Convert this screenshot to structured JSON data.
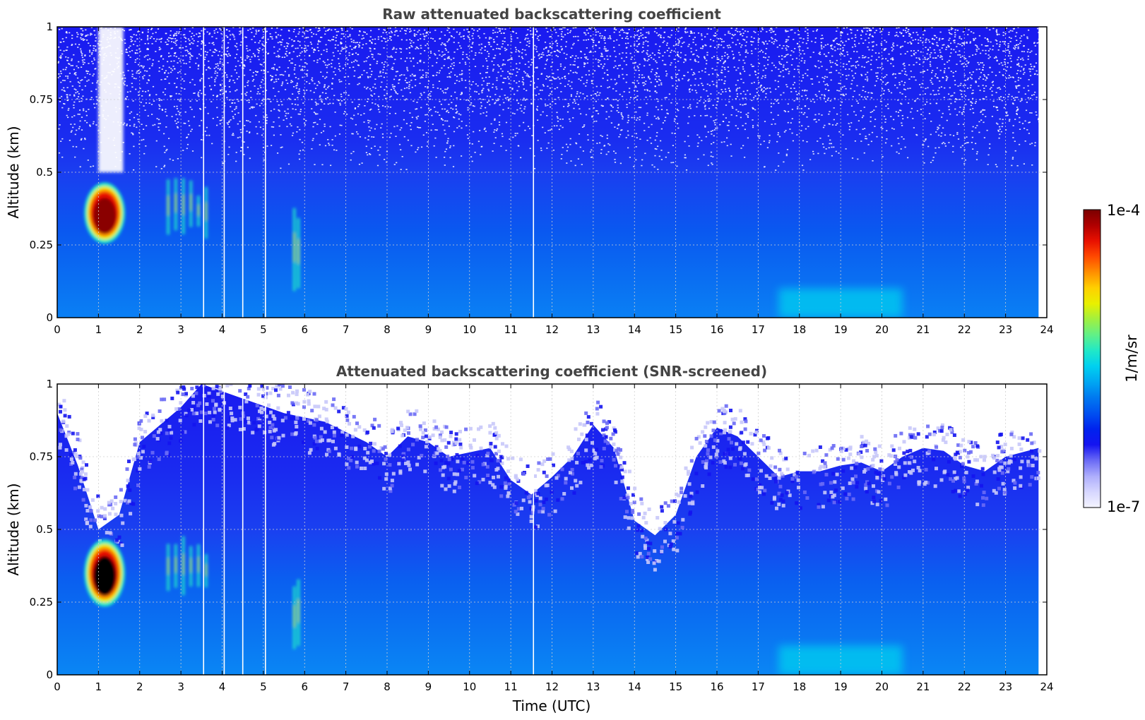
{
  "chart_data": [
    {
      "type": "heatmap",
      "title": "Raw attenuated backscattering coefficient",
      "xlabel": "",
      "ylabel": "Altitude (km)",
      "xlim": [
        0,
        24
      ],
      "ylim": [
        0,
        1
      ],
      "x_ticks": [
        "0",
        "1",
        "2",
        "3",
        "4",
        "5",
        "6",
        "7",
        "8",
        "9",
        "10",
        "11",
        "12",
        "13",
        "14",
        "15",
        "16",
        "17",
        "18",
        "19",
        "20",
        "21",
        "22",
        "23",
        "24"
      ],
      "y_ticks": [
        "0",
        "0.25",
        "0.5",
        "0.75",
        "1"
      ],
      "grid": true,
      "data_extent_x": [
        0,
        23.8
      ],
      "features": [
        {
          "kind": "cloud",
          "t": [
            0.7,
            1.6
          ],
          "alt": [
            0.26,
            0.46
          ],
          "level": "1e-4"
        },
        {
          "kind": "noise_gap",
          "t": [
            1.0,
            1.6
          ],
          "alt": [
            0.5,
            1.0
          ]
        },
        {
          "kind": "plume",
          "t": [
            2.6,
            3.7
          ],
          "alt": [
            0.27,
            0.48
          ],
          "level": "mid"
        },
        {
          "kind": "plume",
          "t": [
            5.7,
            5.9
          ],
          "alt": [
            0.08,
            0.38
          ],
          "level": "mid"
        },
        {
          "kind": "surface_layer",
          "t": [
            17.5,
            20.5
          ],
          "alt": [
            0.0,
            0.1
          ],
          "level": "mid"
        },
        {
          "kind": "gap_lines",
          "t": [
            3.55,
            4.05,
            4.5,
            5.05,
            11.55
          ]
        }
      ]
    },
    {
      "type": "heatmap",
      "title": "Attenuated backscattering coefficient (SNR-screened)",
      "xlabel": "Time (UTC)",
      "ylabel": "Altitude (km)",
      "xlim": [
        0,
        24
      ],
      "ylim": [
        0,
        1
      ],
      "x_ticks": [
        "0",
        "1",
        "2",
        "3",
        "4",
        "5",
        "6",
        "7",
        "8",
        "9",
        "10",
        "11",
        "12",
        "13",
        "14",
        "15",
        "16",
        "17",
        "18",
        "19",
        "20",
        "21",
        "22",
        "23",
        "24"
      ],
      "y_ticks": [
        "0",
        "0.25",
        "0.5",
        "0.75",
        "1"
      ],
      "grid": true,
      "data_extent_x": [
        0,
        23.8
      ],
      "boundary_layer_top_km": [
        [
          0,
          0.9
        ],
        [
          0.5,
          0.72
        ],
        [
          1.0,
          0.5
        ],
        [
          1.5,
          0.55
        ],
        [
          2.0,
          0.8
        ],
        [
          2.5,
          0.86
        ],
        [
          3.0,
          0.92
        ],
        [
          3.5,
          1.0
        ],
        [
          4.5,
          0.95
        ],
        [
          5.5,
          0.9
        ],
        [
          6.5,
          0.87
        ],
        [
          7.5,
          0.8
        ],
        [
          8.0,
          0.75
        ],
        [
          8.5,
          0.82
        ],
        [
          9.0,
          0.8
        ],
        [
          9.5,
          0.75
        ],
        [
          10.5,
          0.78
        ],
        [
          11.0,
          0.67
        ],
        [
          11.5,
          0.62
        ],
        [
          12.0,
          0.68
        ],
        [
          12.5,
          0.75
        ],
        [
          13.0,
          0.86
        ],
        [
          13.5,
          0.78
        ],
        [
          14.0,
          0.53
        ],
        [
          14.5,
          0.48
        ],
        [
          15.0,
          0.55
        ],
        [
          15.5,
          0.75
        ],
        [
          16.0,
          0.85
        ],
        [
          16.5,
          0.82
        ],
        [
          17.0,
          0.75
        ],
        [
          17.5,
          0.68
        ],
        [
          18.0,
          0.7
        ],
        [
          18.5,
          0.7
        ],
        [
          19.0,
          0.72
        ],
        [
          19.5,
          0.73
        ],
        [
          20.0,
          0.7
        ],
        [
          20.5,
          0.75
        ],
        [
          21.0,
          0.78
        ],
        [
          21.5,
          0.77
        ],
        [
          22.0,
          0.72
        ],
        [
          22.5,
          0.7
        ],
        [
          23.0,
          0.75
        ],
        [
          23.8,
          0.78
        ]
      ],
      "features": [
        {
          "kind": "cloud",
          "t": [
            0.7,
            1.6
          ],
          "alt": [
            0.24,
            0.46
          ],
          "level": "saturated"
        },
        {
          "kind": "plume",
          "t": [
            2.6,
            3.7
          ],
          "alt": [
            0.27,
            0.48
          ],
          "level": "mid"
        },
        {
          "kind": "plume",
          "t": [
            5.7,
            5.9
          ],
          "alt": [
            0.08,
            0.38
          ],
          "level": "mid"
        },
        {
          "kind": "surface_layer",
          "t": [
            17.5,
            20.5
          ],
          "alt": [
            0.0,
            0.1
          ],
          "level": "mid"
        },
        {
          "kind": "gap_lines",
          "t": [
            3.55,
            4.05,
            4.5,
            5.05,
            11.55
          ]
        }
      ]
    }
  ],
  "colorbar": {
    "label": "1/m/sr",
    "max_label": "1e-4",
    "min_label": "1e-7",
    "scale": "log",
    "colors": [
      "#f4f4ff",
      "#d6d6ff",
      "#aeaefc",
      "#6a6af5",
      "#1414f0",
      "#0022ee",
      "#0050f0",
      "#0078f0",
      "#00a6f2",
      "#00d0f0",
      "#20e8c8",
      "#60f088",
      "#a0f040",
      "#e8f000",
      "#ffd000",
      "#ff9000",
      "#ff4a00",
      "#e81000",
      "#b00000",
      "#7a0000"
    ]
  }
}
